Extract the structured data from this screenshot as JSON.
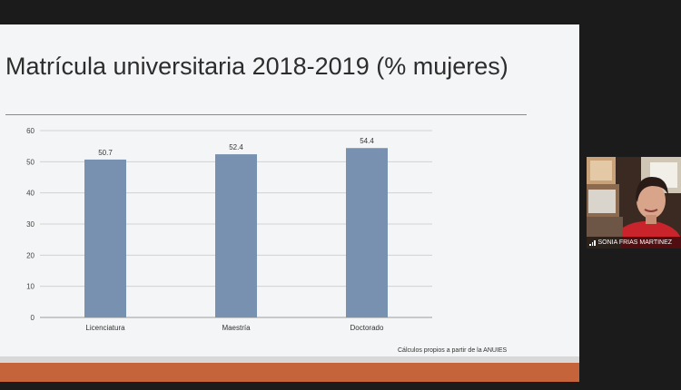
{
  "slide": {
    "title": "Matrícula universitaria 2018-2019 (% mujeres)",
    "source": "Cálculos propios a partir de la ANUIES",
    "accent_color": "#c5633b"
  },
  "chart_data": {
    "type": "bar",
    "title": "",
    "categories": [
      "Licenciatura",
      "Maestría",
      "Doctorado"
    ],
    "values": [
      50.7,
      52.4,
      54.4
    ],
    "data_labels": [
      "50.7",
      "52.4",
      "54.4"
    ],
    "ylim": [
      0,
      60
    ],
    "yticks": [
      0,
      10,
      20,
      30,
      40,
      50,
      60
    ],
    "grid": true,
    "bar_color": "#7891b0",
    "xlabel": "",
    "ylabel": ""
  },
  "participant": {
    "name": "SONIA FRIAS MARTINEZ",
    "icon": "signal-bars-icon"
  }
}
